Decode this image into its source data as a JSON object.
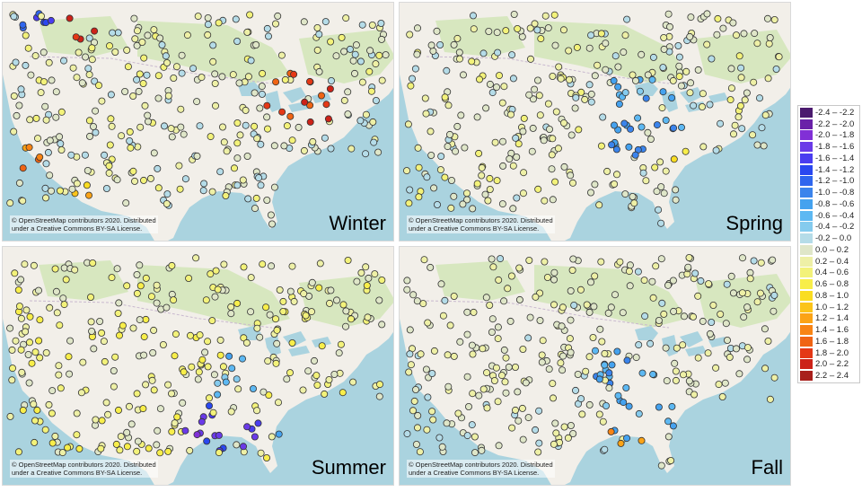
{
  "panels": [
    {
      "season": "Winter",
      "credit": [
        "© OpenStreetMap contributors 2020. Distributed",
        "under a Creative Commons BY-SA License."
      ]
    },
    {
      "season": "Spring",
      "credit": [
        "© OpenStreetMap contributors 2020. Distributed",
        "under a Creative Commons BY-SA License."
      ]
    },
    {
      "season": "Summer",
      "credit": [
        "© OpenStreetMap contributors 2020. Distributed",
        "under a Creative Commons BY-SA License."
      ]
    },
    {
      "season": "Fall",
      "credit": [
        "© OpenStreetMap contributors 2020. Distributed",
        "under a Creative Commons BY-SA License."
      ]
    }
  ],
  "legend": [
    {
      "label": "-2.4 – -2.2",
      "color": "#4b1a6e"
    },
    {
      "label": "-2.2 – -2.0",
      "color": "#6a22a8"
    },
    {
      "label": "-2.0 – -1.8",
      "color": "#8130d6"
    },
    {
      "label": "-1.8 – -1.6",
      "color": "#6a3ae8"
    },
    {
      "label": "-1.6 – -1.4",
      "color": "#4a3df0"
    },
    {
      "label": "-1.4 – -1.2",
      "color": "#2a48f0"
    },
    {
      "label": "-1.2 – -1.0",
      "color": "#2f66ee"
    },
    {
      "label": "-1.0 – -0.8",
      "color": "#3b84ec"
    },
    {
      "label": "-0.8 – -0.6",
      "color": "#45a2ef"
    },
    {
      "label": "-0.6 – -0.4",
      "color": "#5db8f2"
    },
    {
      "label": "-0.4 – -0.2",
      "color": "#85cbee"
    },
    {
      "label": "-0.2 – 0.0",
      "color": "#b5dce8"
    },
    {
      "label": "0.0 – 0.2",
      "color": "#dfe6c8"
    },
    {
      "label": "0.2 – 0.4",
      "color": "#eef0a6"
    },
    {
      "label": "0.4 – 0.6",
      "color": "#f3f27a"
    },
    {
      "label": "0.6 – 0.8",
      "color": "#f8ee4a"
    },
    {
      "label": "0.8 – 1.0",
      "color": "#fadd22"
    },
    {
      "label": "1.0 – 1.2",
      "color": "#fbc41a"
    },
    {
      "label": "1.2 – 1.4",
      "color": "#fba316"
    },
    {
      "label": "1.4 – 1.6",
      "color": "#f88414"
    },
    {
      "label": "1.6 – 1.8",
      "color": "#f06414"
    },
    {
      "label": "1.8 – 2.0",
      "color": "#e43816"
    },
    {
      "label": "2.0 – 2.2",
      "color": "#cc2218"
    },
    {
      "label": "2.2 – 2.4",
      "color": "#a8201c"
    }
  ],
  "map_colors": {
    "ocean": "#aad3df",
    "land": "#f2efe9",
    "forest": "#cfe5b4",
    "lakes": "#aad3df",
    "marker_stroke": "#333333"
  }
}
